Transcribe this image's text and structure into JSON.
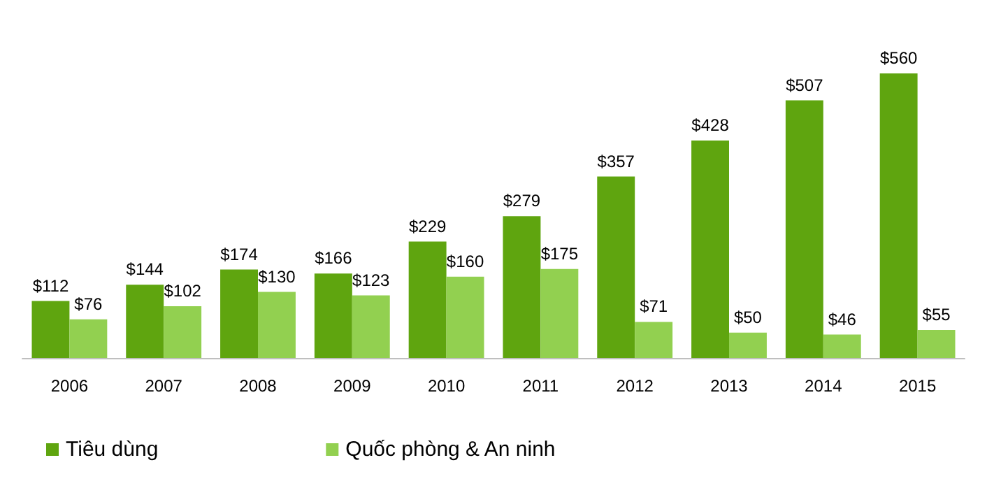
{
  "chart_data": {
    "type": "bar",
    "categories": [
      "2006",
      "2007",
      "2008",
      "2009",
      "2010",
      "2011",
      "2012",
      "2013",
      "2014",
      "2015"
    ],
    "series": [
      {
        "name": "Tiêu dùng",
        "color": "#5fa50f",
        "values": [
          112,
          144,
          174,
          166,
          229,
          279,
          357,
          428,
          507,
          560
        ],
        "value_labels": [
          "$112",
          "$144",
          "$174",
          "$166",
          "$229",
          "$279",
          "$357",
          "$428",
          "$507",
          "$560"
        ]
      },
      {
        "name": "Quốc phòng & An ninh",
        "color": "#92d050",
        "values": [
          76,
          102,
          130,
          123,
          160,
          175,
          71,
          50,
          46,
          55
        ],
        "value_labels": [
          "$76",
          "$102",
          "$130",
          "$123",
          "$160",
          "$175",
          "$71",
          "$50",
          "$46",
          "$55"
        ]
      }
    ],
    "legend": "bottom left"
  }
}
